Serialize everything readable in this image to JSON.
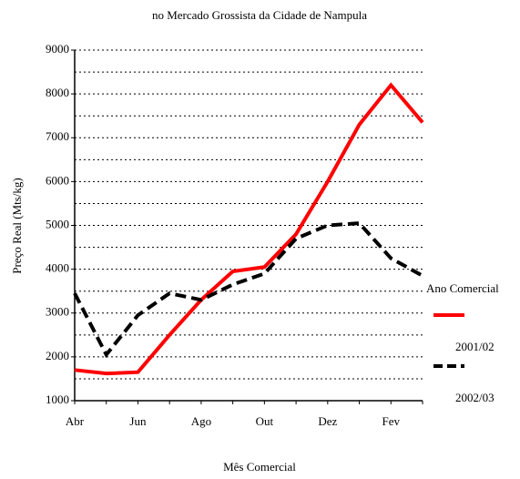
{
  "chart_data": {
    "type": "line",
    "title": "no Mercado Grossista da Cidade de Nampula",
    "xlabel": "Mês Comercial",
    "ylabel": "Preço Real (Mts/kg)",
    "categories": [
      "Abr",
      null,
      "Jun",
      null,
      "Ago",
      null,
      "Out",
      null,
      "Dez",
      null,
      "Fev",
      null
    ],
    "series": [
      {
        "name": "2001/02",
        "color": "#ff0000",
        "dashed": false,
        "values": [
          1700,
          1620,
          1650,
          2500,
          3300,
          3950,
          4050,
          4800,
          6000,
          7300,
          8200,
          7350
        ]
      },
      {
        "name": "2002/03",
        "color": "#000000",
        "dashed": true,
        "values": [
          3450,
          2050,
          2950,
          3450,
          3300,
          3650,
          3900,
          4700,
          5000,
          5050,
          4250,
          3850
        ]
      }
    ],
    "ylim": [
      1000,
      9000
    ],
    "yticks": [
      1000,
      2000,
      3000,
      4000,
      5000,
      6000,
      7000,
      8000,
      9000
    ],
    "minor_yticks": [
      1500,
      2500,
      3500,
      4500,
      5500,
      6500,
      7500,
      8500
    ],
    "grid": true,
    "legend_title": "Ano Comercial",
    "legend_position": "right"
  }
}
